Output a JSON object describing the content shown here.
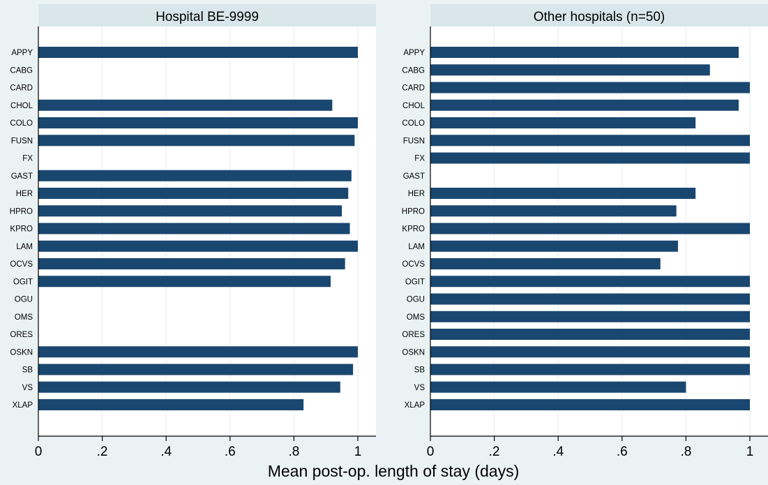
{
  "chart_data": [
    {
      "type": "bar",
      "orientation": "horizontal",
      "title": "Hospital BE-9999",
      "categories": [
        "APPY",
        "CABG",
        "CARD",
        "CHOL",
        "COLO",
        "FUSN",
        "FX",
        "GAST",
        "HER",
        "HPRO",
        "KPRO",
        "LAM",
        "OCVS",
        "OGIT",
        "OGU",
        "OMS",
        "ORES",
        "OSKN",
        "SB",
        "VS",
        "XLAP"
      ],
      "values": [
        1.0,
        null,
        null,
        0.92,
        1.0,
        0.99,
        null,
        0.98,
        0.97,
        0.95,
        0.975,
        1.0,
        0.96,
        0.915,
        null,
        null,
        null,
        1.0,
        0.985,
        0.945,
        0.83
      ],
      "xlim": [
        0,
        1.05
      ],
      "xticks": [
        0,
        0.2,
        0.4,
        0.6,
        0.8,
        1
      ],
      "xtick_labels": [
        "0",
        ".2",
        ".4",
        ".6",
        ".8",
        "1"
      ],
      "grid": "vertical"
    },
    {
      "type": "bar",
      "orientation": "horizontal",
      "title": "Other hospitals (n=50)",
      "categories": [
        "APPY",
        "CABG",
        "CARD",
        "CHOL",
        "COLO",
        "FUSN",
        "FX",
        "GAST",
        "HER",
        "HPRO",
        "KPRO",
        "LAM",
        "OCVS",
        "OGIT",
        "OGU",
        "OMS",
        "ORES",
        "OSKN",
        "SB",
        "VS",
        "XLAP"
      ],
      "values": [
        0.965,
        0.875,
        1.0,
        0.965,
        0.83,
        1.0,
        1.0,
        null,
        0.83,
        0.77,
        1.0,
        0.775,
        0.72,
        1.0,
        1.0,
        1.0,
        1.0,
        1.0,
        1.0,
        0.8,
        1.0
      ],
      "xlim": [
        0,
        1.05
      ],
      "xticks": [
        0,
        0.2,
        0.4,
        0.6,
        0.8,
        1
      ],
      "xtick_labels": [
        "0",
        ".2",
        ".4",
        ".6",
        ".8",
        "1"
      ],
      "grid": "vertical"
    }
  ],
  "xlabel": "Mean post-op. length of stay (days)",
  "colors": {
    "background": "#eaf2f3",
    "plot_area": "#ffffff",
    "bar": "#1a476f",
    "title_strip": "#d9e6eb",
    "grid": "#eaf2f3",
    "axis": "#000000"
  }
}
